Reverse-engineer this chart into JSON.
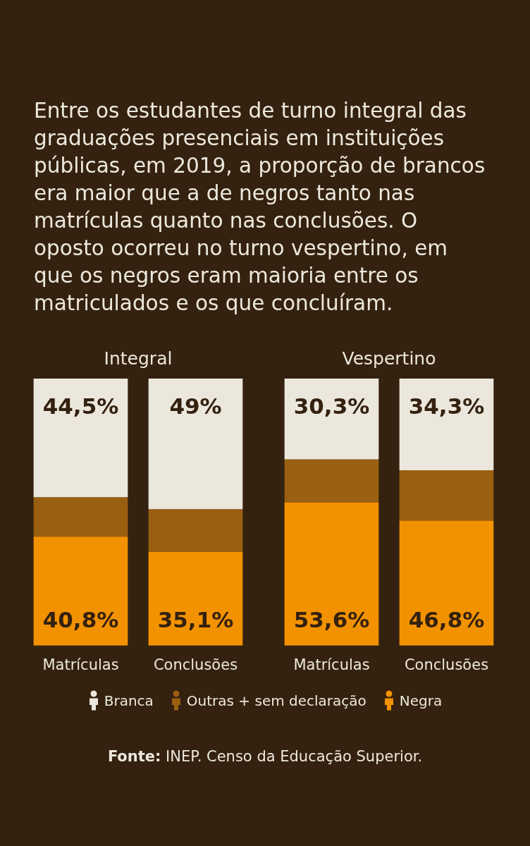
{
  "chart_data": [
    {
      "type": "other",
      "title": "Entre os estudantes de turno integral das graduações presenciais em instituições públicas, em 2019, a proporção de brancos era maior que a de negros tanto nas matrículas quanto nas conclusões. O oposto ocorreu no turno vespertino, em que os negros eram maioria entre os matriculados e os que concluíram."
    },
    {
      "type": "bar",
      "title": "Integral",
      "categories": [
        "Matrículas",
        "Conclusões"
      ],
      "stacked": true,
      "ylim": [
        0,
        100
      ],
      "tick_labels": "x",
      "legend": "bottom",
      "series": [
        {
          "name": "Negra",
          "color": "#f39200",
          "values": [
            40.8,
            35.1
          ],
          "value_labels": [
            "40,8%",
            "35,1%"
          ]
        },
        {
          "name": "Outras + sem declaração",
          "color": "#9a5f10",
          "values": [
            14.7,
            15.9
          ]
        },
        {
          "name": "Branca",
          "color": "#ebe7dc",
          "values": [
            44.5,
            49
          ],
          "value_labels": [
            "44,5%",
            "49%"
          ]
        }
      ]
    },
    {
      "type": "bar",
      "title": "Vespertino",
      "categories": [
        "Matrículas",
        "Conclusões"
      ],
      "stacked": true,
      "ylim": [
        0,
        100
      ],
      "tick_labels": "x",
      "series": [
        {
          "color": "#f39200",
          "values": [
            53.6,
            46.8
          ],
          "value_labels": [
            "53,6%",
            "46,8%"
          ]
        },
        {
          "color": "#9a5f10",
          "values": [
            16.1,
            18.9
          ]
        },
        {
          "color": "#ebe7dc",
          "values": [
            30.3,
            34.3
          ],
          "value_labels": [
            "30,3%",
            "34,3%"
          ]
        }
      ]
    },
    {
      "type": "other",
      "annotations": [
        "Fonte: INEP. Censo da Educação Superior."
      ]
    }
  ]
}
